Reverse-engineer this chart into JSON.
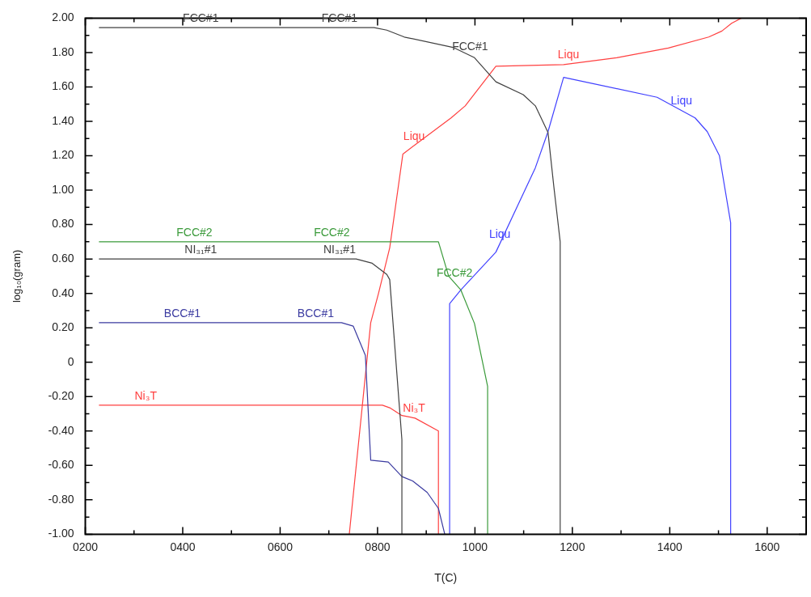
{
  "chart_data": {
    "type": "line",
    "xlabel": "T(C)",
    "ylabel": "log₁₀(gram)",
    "xlim": [
      200,
      1680
    ],
    "ylim": [
      -1,
      2
    ],
    "xticks": [
      {
        "value": 200,
        "label": "0200"
      },
      {
        "value": 300,
        "label": null
      },
      {
        "value": 400,
        "label": "0400"
      },
      {
        "value": 500,
        "label": null
      },
      {
        "value": 600,
        "label": "0600"
      },
      {
        "value": 700,
        "label": null
      },
      {
        "value": 800,
        "label": "0800"
      },
      {
        "value": 900,
        "label": null
      },
      1000,
      {
        "value": 1100,
        "label": null
      },
      1200,
      {
        "value": 1300,
        "label": null
      },
      1400,
      {
        "value": 1500,
        "label": null
      },
      1600
    ],
    "yticks": [
      {
        "value": -1,
        "label": "-1.00"
      },
      {
        "value": -0.9,
        "label": null
      },
      {
        "value": -0.8,
        "label": "-0.80"
      },
      {
        "value": -0.7,
        "label": null
      },
      {
        "value": -0.6,
        "label": "-0.60"
      },
      {
        "value": -0.5,
        "label": null
      },
      {
        "value": -0.4,
        "label": "-0.40"
      },
      {
        "value": -0.3,
        "label": null
      },
      {
        "value": -0.2,
        "label": "-0.20"
      },
      {
        "value": -0.1,
        "label": null
      },
      0,
      {
        "value": 0.1,
        "label": null
      },
      {
        "value": 0.2,
        "label": "0.20"
      },
      {
        "value": 0.3,
        "label": null
      },
      {
        "value": 0.4,
        "label": "0.40"
      },
      {
        "value": 0.5,
        "label": null
      },
      {
        "value": 0.6,
        "label": "0.60"
      },
      {
        "value": 0.7,
        "label": null
      },
      {
        "value": 0.8,
        "label": "0.80"
      },
      {
        "value": 0.9,
        "label": null
      },
      {
        "value": 1,
        "label": "1.00"
      },
      {
        "value": 1.1,
        "label": null
      },
      {
        "value": 1.2,
        "label": "1.20"
      },
      {
        "value": 1.3,
        "label": null
      },
      {
        "value": 1.4,
        "label": "1.40"
      },
      {
        "value": 1.5,
        "label": null
      },
      {
        "value": 1.6,
        "label": "1.60"
      },
      {
        "value": 1.7,
        "label": null
      },
      {
        "value": 1.8,
        "label": "1.80"
      },
      {
        "value": 1.9,
        "label": null
      },
      {
        "value": 2,
        "label": "2.00"
      }
    ],
    "grid": false,
    "legend": false,
    "marker": "none",
    "line_style": "solid",
    "series": [
      {
        "color": "#404040",
        "x": [
          228,
          793,
          819,
          855,
          955,
          999,
          1043,
          1099,
          1124,
          1150,
          1162,
          1175,
          1175
        ],
        "values": [
          1.945,
          1.945,
          1.93,
          1.89,
          1.83,
          1.77,
          1.63,
          1.555,
          1.49,
          1.335,
          1.02,
          0.7,
          -1
        ]
      },
      {
        "color": "#404040",
        "x": [
          228,
          756,
          789,
          819,
          825,
          850,
          850
        ],
        "values": [
          0.6,
          0.6,
          0.575,
          0.51,
          0.48,
          -0.45,
          -1
        ]
      },
      {
        "color": "#3a3aa0",
        "x": [
          228,
          726,
          750,
          775,
          786,
          822,
          850,
          872,
          902,
          925,
          938
        ],
        "values": [
          0.23,
          0.23,
          0.21,
          0.04,
          -0.57,
          -0.58,
          -0.665,
          -0.69,
          -0.757,
          -0.85,
          -1
        ]
      },
      {
        "color": "#3a9a3a",
        "x": [
          228,
          925,
          946,
          971,
          999,
          1026,
          1026
        ],
        "values": [
          0.7,
          0.7,
          0.5,
          0.42,
          0.225,
          -0.14,
          -1
        ]
      },
      {
        "color": "#ff4040",
        "x": [
          228,
          810,
          825,
          850,
          877,
          925,
          925
        ],
        "values": [
          -0.25,
          -0.25,
          -0.265,
          -0.31,
          -0.325,
          -0.4,
          -1
        ]
      },
      {
        "color": "#ff4040",
        "x": [
          742,
          786,
          802,
          825,
          852,
          951,
          980,
          1043,
          1182,
          1291,
          1397,
          1480,
          1507,
          1527,
          1547
        ],
        "values": [
          -1,
          0.23,
          0.4,
          0.665,
          1.21,
          1.42,
          1.49,
          1.72,
          1.73,
          1.77,
          1.826,
          1.89,
          1.925,
          1.97,
          2
        ]
      },
      {
        "color": "#4040ff",
        "x": [
          948,
          948,
          971,
          1043,
          1124,
          1150,
          1182,
          1374,
          1452,
          1477,
          1502,
          1525,
          1525
        ],
        "values": [
          -1,
          0.34,
          0.42,
          0.64,
          1.13,
          1.34,
          1.656,
          1.54,
          1.42,
          1.34,
          1.2,
          0.81,
          -1
        ]
      }
    ],
    "annotations": [
      {
        "text": "FCC#1",
        "x": 437,
        "y": 1.945
      },
      {
        "text": "FCC#1",
        "x": 722,
        "y": 1.945
      },
      {
        "text": "FCC#1",
        "x": 990,
        "y": 1.782
      },
      {
        "text": "Liqu",
        "x": 1192,
        "y": 1.734
      },
      {
        "text": "Liqu",
        "x": 875,
        "y": 1.259
      },
      {
        "text": "Liqu",
        "x": 1424,
        "y": 1.463
      },
      {
        "text": "Liqu",
        "x": 1051,
        "y": 0.688
      },
      {
        "text": "FCC#2",
        "x": 424,
        "y": 0.7
      },
      {
        "text": "FCC#2",
        "x": 706,
        "y": 0.7
      },
      {
        "text": "FCC#2",
        "x": 958,
        "y": 0.462
      },
      {
        "text": "NI₃₁#1",
        "x": 437,
        "y": 0.6
      },
      {
        "text": "NI₃₁#1",
        "x": 722,
        "y": 0.6
      },
      {
        "text": "BCC#1",
        "x": 399,
        "y": 0.23
      },
      {
        "text": "BCC#1",
        "x": 673,
        "y": 0.23
      },
      {
        "text": "Ni₃T",
        "x": 324,
        "y": -0.25
      },
      {
        "text": "Ni₃T",
        "x": 875,
        "y": -0.324
      }
    ]
  }
}
